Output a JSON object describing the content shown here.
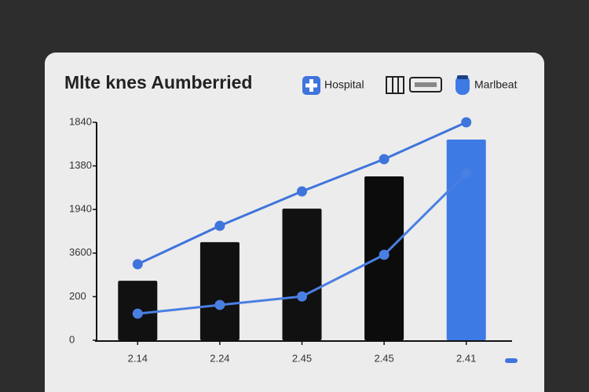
{
  "chart_data": {
    "type": "bar",
    "title": "Mlte knes Aumberried",
    "categories": [
      "2.14",
      "2.24",
      "2.45",
      "2.45",
      "2.41"
    ],
    "ylim": [
      0,
      1000
    ],
    "yticks": [
      0,
      200,
      {
        "value": 400,
        "label": "3600"
      },
      {
        "value": 600,
        "label": "1940"
      },
      {
        "value": 800,
        "label": "1380"
      },
      {
        "value": 1000,
        "label": "1840"
      }
    ],
    "series": [
      {
        "name": "Hospital",
        "type": "line",
        "color": "#3f74dc",
        "values": [
          349,
          525,
          683,
          831,
          1000
        ]
      },
      {
        "name": "Marlbeat",
        "type": "bar",
        "color": "#111111",
        "colors": [
          "#111111",
          "#111111",
          "#111111",
          "#0c0c0c",
          "#3e7ae4"
        ],
        "values": [
          273,
          450,
          604,
          752,
          921
        ]
      },
      {
        "type": "line",
        "color": "#4a7fe2",
        "values": [
          122,
          162,
          201,
          392,
          766
        ]
      }
    ]
  }
}
